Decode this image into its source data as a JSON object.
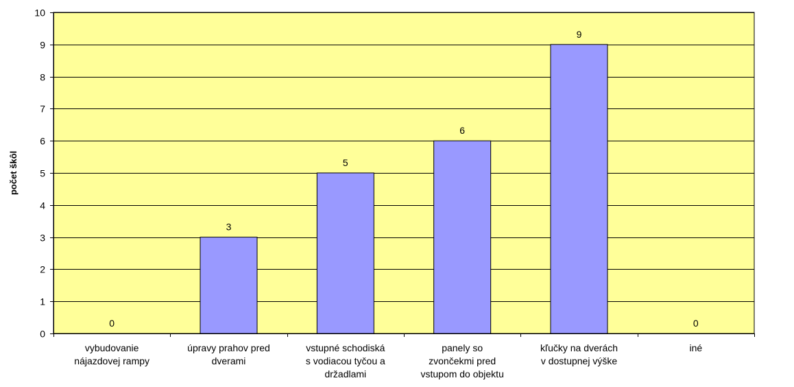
{
  "chart_data": {
    "type": "bar",
    "title": "",
    "xlabel": "",
    "ylabel": "počet škôl",
    "ylim": [
      0,
      10
    ],
    "yticks": [
      0,
      1,
      2,
      3,
      4,
      5,
      6,
      7,
      8,
      9,
      10
    ],
    "grid": true,
    "legend": "none",
    "categories": [
      [
        "vybudovanie",
        "nájazdovej rampy"
      ],
      [
        "úpravy prahov pred",
        "dverami"
      ],
      [
        "vstupné schodiská",
        "s vodiacou tyčou a",
        "držadlami"
      ],
      [
        "panely so",
        "zvončekmi pred",
        "vstupom do objektu"
      ],
      [
        "kľučky na dverách",
        "v dostupnej výške"
      ],
      [
        "iné"
      ]
    ],
    "values": [
      0,
      3,
      5,
      6,
      9,
      0
    ],
    "colors": {
      "plot_background": "#ffff99",
      "bar_fill": "#9999ff",
      "bar_stroke": "#000000",
      "grid": "#000000"
    }
  }
}
